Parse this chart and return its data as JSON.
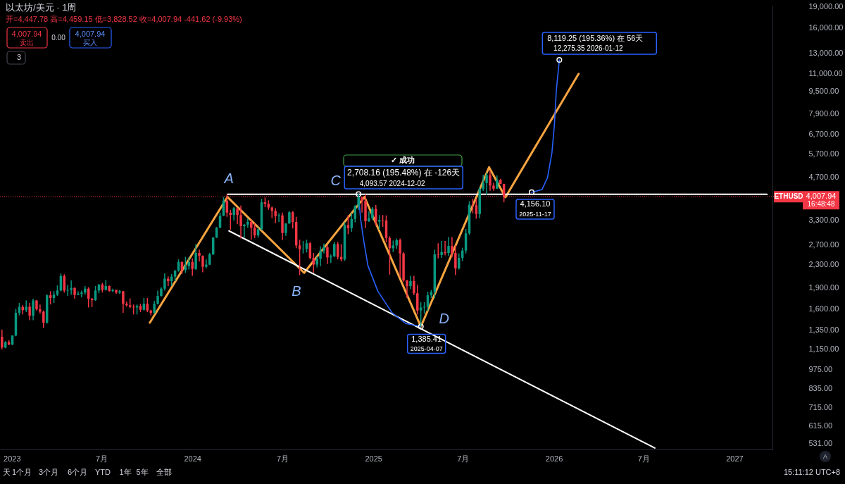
{
  "chart_data": {
    "type": "candlestick",
    "title": "以太坊/美元 · 1周",
    "subtitle": "开=4,447.78 高=4,459.15 低=3,828.52 收=4,007.94 -441.62 (-9.93%)",
    "x": [
      "2022-12-12",
      "2022-12-19",
      "2022-12-26",
      "2023-01-02",
      "2023-01-09",
      "2023-01-16",
      "2023-01-23",
      "2023-01-30",
      "2023-02-06",
      "2023-02-13",
      "2023-02-20",
      "2023-02-27",
      "2023-03-06",
      "2023-03-13",
      "2023-03-20",
      "2023-03-27",
      "2023-04-03",
      "2023-04-10",
      "2023-04-17",
      "2023-04-24",
      "2023-05-01",
      "2023-05-08",
      "2023-05-15",
      "2023-05-22",
      "2023-05-29",
      "2023-06-05",
      "2023-06-12",
      "2023-06-19",
      "2023-06-26",
      "2023-07-03",
      "2023-07-10",
      "2023-07-17",
      "2023-07-24",
      "2023-07-31",
      "2023-08-07",
      "2023-08-14",
      "2023-08-21",
      "2023-08-28",
      "2023-09-04",
      "2023-09-11",
      "2023-09-18",
      "2023-09-25",
      "2023-10-02",
      "2023-10-09",
      "2023-10-16",
      "2023-10-23",
      "2023-10-30",
      "2023-11-06",
      "2023-11-13",
      "2023-11-20",
      "2023-11-27",
      "2023-12-04",
      "2023-12-11",
      "2023-12-18",
      "2023-12-25",
      "2024-01-01",
      "2024-01-08",
      "2024-01-15",
      "2024-01-22",
      "2024-01-29",
      "2024-02-05",
      "2024-02-12",
      "2024-02-19",
      "2024-02-26",
      "2024-03-04",
      "2024-03-11",
      "2024-03-18",
      "2024-03-25",
      "2024-04-01",
      "2024-04-08",
      "2024-04-15",
      "2024-04-22",
      "2024-04-29",
      "2024-05-06",
      "2024-05-13",
      "2024-05-20",
      "2024-05-27",
      "2024-06-03",
      "2024-06-10",
      "2024-06-17",
      "2024-06-24",
      "2024-07-01",
      "2024-07-08",
      "2024-07-15",
      "2024-07-22",
      "2024-07-29",
      "2024-08-05",
      "2024-08-12",
      "2024-08-19",
      "2024-08-26",
      "2024-09-02",
      "2024-09-09",
      "2024-09-16",
      "2024-09-23",
      "2024-09-30",
      "2024-10-07",
      "2024-10-14",
      "2024-10-21",
      "2024-10-28",
      "2024-11-04",
      "2024-11-11",
      "2024-11-18",
      "2024-11-25",
      "2024-12-02",
      "2024-12-09",
      "2024-12-16",
      "2024-12-23",
      "2024-12-30",
      "2025-01-06",
      "2025-01-13",
      "2025-01-20",
      "2025-01-27",
      "2025-02-03",
      "2025-02-10",
      "2025-02-17",
      "2025-02-24",
      "2025-03-03",
      "2025-03-10",
      "2025-03-17",
      "2025-03-24",
      "2025-03-31",
      "2025-04-07",
      "2025-04-14",
      "2025-04-21",
      "2025-04-28",
      "2025-05-05",
      "2025-05-12",
      "2025-05-19",
      "2025-05-26",
      "2025-06-02",
      "2025-06-09",
      "2025-06-16",
      "2025-06-23",
      "2025-06-30",
      "2025-07-07",
      "2025-07-14",
      "2025-07-21",
      "2025-07-28",
      "2025-08-04",
      "2025-08-11",
      "2025-08-18",
      "2025-08-25",
      "2025-09-01",
      "2025-09-08",
      "2025-09-15",
      "2025-09-22"
    ],
    "ohlc": [
      [
        1275,
        1352,
        1150,
        1167
      ],
      [
        1167,
        1230,
        1160,
        1220
      ],
      [
        1220,
        1240,
        1190,
        1196
      ],
      [
        1196,
        1290,
        1190,
        1287
      ],
      [
        1287,
        1600,
        1280,
        1550
      ],
      [
        1550,
        1680,
        1520,
        1628
      ],
      [
        1628,
        1650,
        1530,
        1585
      ],
      [
        1585,
        1715,
        1560,
        1630
      ],
      [
        1630,
        1680,
        1460,
        1515
      ],
      [
        1515,
        1740,
        1460,
        1715
      ],
      [
        1715,
        1720,
        1580,
        1595
      ],
      [
        1595,
        1660,
        1540,
        1565
      ],
      [
        1565,
        1580,
        1370,
        1430
      ],
      [
        1430,
        1800,
        1420,
        1790
      ],
      [
        1790,
        1850,
        1660,
        1750
      ],
      [
        1750,
        1850,
        1680,
        1800
      ],
      [
        1800,
        1940,
        1780,
        1860
      ],
      [
        1860,
        2140,
        1850,
        2095
      ],
      [
        2095,
        2125,
        1830,
        1860
      ],
      [
        1860,
        1950,
        1780,
        1870
      ],
      [
        1870,
        2020,
        1800,
        1900
      ],
      [
        1900,
        1910,
        1740,
        1795
      ],
      [
        1795,
        1850,
        1790,
        1810
      ],
      [
        1810,
        1860,
        1760,
        1830
      ],
      [
        1830,
        1930,
        1800,
        1890
      ],
      [
        1890,
        1910,
        1620,
        1740
      ],
      [
        1740,
        1750,
        1625,
        1720
      ],
      [
        1720,
        1930,
        1710,
        1860
      ],
      [
        1860,
        1960,
        1820,
        1955
      ],
      [
        1955,
        1980,
        1830,
        1870
      ],
      [
        1870,
        2030,
        1860,
        1930
      ],
      [
        1930,
        1940,
        1840,
        1855
      ],
      [
        1855,
        1890,
        1835,
        1870
      ],
      [
        1870,
        1875,
        1810,
        1830
      ],
      [
        1830,
        1870,
        1810,
        1850
      ],
      [
        1850,
        1855,
        1550,
        1670
      ],
      [
        1670,
        1700,
        1630,
        1650
      ],
      [
        1650,
        1745,
        1610,
        1630
      ],
      [
        1630,
        1660,
        1530,
        1620
      ],
      [
        1620,
        1660,
        1530,
        1640
      ],
      [
        1640,
        1670,
        1560,
        1590
      ],
      [
        1590,
        1750,
        1580,
        1670
      ],
      [
        1670,
        1750,
        1560,
        1580
      ],
      [
        1580,
        1590,
        1520,
        1550
      ],
      [
        1550,
        1710,
        1540,
        1670
      ],
      [
        1670,
        1860,
        1660,
        1780
      ],
      [
        1780,
        1910,
        1770,
        1890
      ],
      [
        1890,
        2140,
        1860,
        2050
      ],
      [
        2050,
        2090,
        1930,
        2010
      ],
      [
        2010,
        2130,
        1930,
        2085
      ],
      [
        2085,
        2200,
        2010,
        2190
      ],
      [
        2190,
        2400,
        2170,
        2350
      ],
      [
        2350,
        2360,
        2130,
        2200
      ],
      [
        2200,
        2450,
        2150,
        2270
      ],
      [
        2270,
        2445,
        2210,
        2350
      ],
      [
        2350,
        2420,
        2100,
        2220
      ],
      [
        2220,
        2720,
        2200,
        2530
      ],
      [
        2530,
        2600,
        2360,
        2470
      ],
      [
        2470,
        2480,
        2160,
        2260
      ],
      [
        2260,
        2400,
        2230,
        2300
      ],
      [
        2300,
        2530,
        2290,
        2500
      ],
      [
        2500,
        2880,
        2490,
        2870
      ],
      [
        2870,
        3130,
        2860,
        3110
      ],
      [
        3110,
        3520,
        3100,
        3430
      ],
      [
        3430,
        3990,
        3420,
        3880
      ],
      [
        3880,
        4090,
        3400,
        3520
      ],
      [
        3520,
        3600,
        3060,
        3450
      ],
      [
        3450,
        3680,
        3300,
        3650
      ],
      [
        3650,
        3660,
        3200,
        3450
      ],
      [
        3450,
        3730,
        2850,
        3150
      ],
      [
        3150,
        3200,
        2870,
        3190
      ],
      [
        3190,
        3350,
        3110,
        3260
      ],
      [
        3260,
        3330,
        2820,
        3110
      ],
      [
        3110,
        3220,
        2860,
        2920
      ],
      [
        2920,
        3120,
        2870,
        3070
      ],
      [
        3070,
        3940,
        3050,
        3830
      ],
      [
        3830,
        3980,
        3680,
        3780
      ],
      [
        3780,
        3890,
        3600,
        3670
      ],
      [
        3670,
        3700,
        3360,
        3570
      ],
      [
        3570,
        3650,
        3230,
        3420
      ],
      [
        3420,
        3500,
        3260,
        3440
      ],
      [
        3440,
        3520,
        2810,
        2980
      ],
      [
        2980,
        3230,
        2910,
        3220
      ],
      [
        3220,
        3560,
        3210,
        3530
      ],
      [
        3530,
        3560,
        3090,
        3260
      ],
      [
        3260,
        3400,
        2630,
        2690
      ],
      [
        2690,
        2820,
        2110,
        2610
      ],
      [
        2610,
        2790,
        2520,
        2615
      ],
      [
        2615,
        2820,
        2540,
        2740
      ],
      [
        2740,
        2770,
        2400,
        2430
      ],
      [
        2430,
        2530,
        2150,
        2300
      ],
      [
        2300,
        2460,
        2250,
        2410
      ],
      [
        2410,
        2670,
        2270,
        2580
      ],
      [
        2580,
        2730,
        2520,
        2650
      ],
      [
        2650,
        2700,
        2310,
        2440
      ],
      [
        2440,
        2500,
        2330,
        2460
      ],
      [
        2460,
        2770,
        2450,
        2720
      ],
      [
        2720,
        2770,
        2400,
        2450
      ],
      [
        2450,
        2720,
        2360,
        2400
      ],
      [
        2400,
        3250,
        2370,
        3180
      ],
      [
        3180,
        3450,
        2950,
        3100
      ],
      [
        3100,
        3500,
        3010,
        3340
      ],
      [
        3340,
        3740,
        3250,
        3710
      ],
      [
        3710,
        4093.57,
        3600,
        3990
      ],
      [
        3990,
        4010,
        3520,
        3880
      ],
      [
        3880,
        4090,
        3100,
        3280
      ],
      [
        3280,
        3550,
        3260,
        3360
      ],
      [
        3360,
        3680,
        3310,
        3630
      ],
      [
        3630,
        3745,
        3160,
        3270
      ],
      [
        3270,
        3450,
        3060,
        3310
      ],
      [
        3310,
        3450,
        3130,
        3300
      ],
      [
        3300,
        3440,
        2760,
        2860
      ],
      [
        2860,
        2900,
        2120,
        2630
      ],
      [
        2630,
        2800,
        2550,
        2690
      ],
      [
        2690,
        2850,
        2620,
        2810
      ],
      [
        2810,
        2850,
        2080,
        2520
      ],
      [
        2520,
        2550,
        2000,
        2020
      ],
      [
        2020,
        2030,
        1750,
        1930
      ],
      [
        1930,
        2100,
        1880,
        2010
      ],
      [
        2010,
        2100,
        1790,
        1820
      ],
      [
        1820,
        1950,
        1530,
        1580
      ],
      [
        1580,
        1690,
        1385.41,
        1620
      ],
      [
        1620,
        1690,
        1540,
        1630
      ],
      [
        1630,
        1840,
        1570,
        1790
      ],
      [
        1790,
        1870,
        1750,
        1840
      ],
      [
        1840,
        2600,
        1750,
        2500
      ],
      [
        2500,
        2740,
        2420,
        2490
      ],
      [
        2490,
        2790,
        2430,
        2550
      ],
      [
        2550,
        2790,
        2480,
        2530
      ],
      [
        2530,
        2880,
        2470,
        2680
      ],
      [
        2680,
        2880,
        2440,
        2530
      ],
      [
        2530,
        2690,
        2110,
        2230
      ],
      [
        2230,
        2520,
        2210,
        2430
      ],
      [
        2430,
        2640,
        2370,
        2580
      ],
      [
        2580,
        3080,
        2520,
        2970
      ],
      [
        2970,
        3860,
        2930,
        3750
      ],
      [
        3750,
        3940,
        3500,
        3740
      ],
      [
        3740,
        3940,
        3350,
        3480
      ],
      [
        3480,
        4330,
        3360,
        4270
      ],
      [
        4270,
        4790,
        4200,
        4480
      ],
      [
        4480,
        4890,
        4060,
        4780
      ],
      [
        4780,
        4950,
        4210,
        4390
      ],
      [
        4390,
        4490,
        4210,
        4280
      ],
      [
        4280,
        4770,
        4270,
        4600
      ],
      [
        4600,
        4640,
        4440,
        4450
      ],
      [
        4447.78,
        4459.15,
        3828.52,
        4007.94
      ]
    ],
    "colors": [
      "#f23645",
      "#089981",
      "#f23645",
      "#089981",
      "#089981",
      "#089981",
      "#f23645",
      "#089981",
      "#f23645",
      "#089981",
      "#f23645",
      "#f23645",
      "#f23645",
      "#089981",
      "#f23645",
      "#089981",
      "#089981",
      "#089981",
      "#f23645",
      "#089981",
      "#089981",
      "#f23645",
      "#089981",
      "#089981",
      "#089981",
      "#f23645",
      "#f23645",
      "#089981",
      "#089981",
      "#f23645",
      "#089981",
      "#f23645",
      "#089981",
      "#f23645",
      "#089981",
      "#f23645",
      "#f23645",
      "#f23645",
      "#f23645",
      "#089981",
      "#f23645",
      "#089981",
      "#f23645",
      "#f23645",
      "#089981",
      "#089981",
      "#089981",
      "#089981",
      "#f23645",
      "#089981",
      "#089981",
      "#089981",
      "#f23645",
      "#089981",
      "#089981",
      "#f23645",
      "#089981",
      "#f23645",
      "#f23645",
      "#089981",
      "#089981",
      "#089981",
      "#089981",
      "#089981",
      "#089981",
      "#f23645",
      "#f23645",
      "#089981",
      "#f23645",
      "#f23645",
      "#089981",
      "#089981",
      "#f23645",
      "#f23645",
      "#089981",
      "#089981",
      "#f23645",
      "#f23645",
      "#f23645",
      "#f23645",
      "#089981",
      "#f23645",
      "#089981",
      "#089981",
      "#f23645",
      "#f23645",
      "#f23645",
      "#089981",
      "#089981",
      "#f23645",
      "#f23645",
      "#089981",
      "#089981",
      "#089981",
      "#f23645",
      "#089981",
      "#089981",
      "#f23645",
      "#f23645",
      "#089981",
      "#f23645",
      "#089981",
      "#089981",
      "#089981",
      "#f23645",
      "#f23645",
      "#089981",
      "#089981",
      "#f23645",
      "#089981",
      "#f23645",
      "#f23645",
      "#f23645",
      "#089981",
      "#089981",
      "#f23645",
      "#f23645",
      "#f23645",
      "#089981",
      "#f23645",
      "#f23645",
      "#089981",
      "#089981",
      "#089981",
      "#089981",
      "#089981",
      "#f23645",
      "#089981",
      "#f23645",
      "#089981",
      "#f23645",
      "#f23645",
      "#089981",
      "#089981",
      "#089981",
      "#089981",
      "#f23645",
      "#f23645",
      "#089981",
      "#089981",
      "#089981",
      "#f23645",
      "#f23645",
      "#089981",
      "#f23645",
      "#f23645"
    ],
    "series": [
      {
        "type": "line",
        "color": "#f7a440",
        "x": [
          "2023-10-07",
          "2024-03-12",
          "2024-08-14",
          "2024-12-14",
          "2025-04-07",
          "2025-08-23",
          "2025-09-25",
          "2026-02-20"
        ],
        "values": [
          1430,
          4000,
          2150,
          4000,
          1385.41,
          5100,
          3990,
          10950
        ]
      },
      {
        "type": "line",
        "color": "#ffffff",
        "x": [
          "2024-03-12",
          "2027-03-08"
        ],
        "values": [
          4090,
          4090
        ]
      },
      {
        "type": "line",
        "color": "#ffffff",
        "x": [
          "2024-03-15",
          "2026-07-24"
        ],
        "values": [
          3030,
          513
        ]
      },
      {
        "type": "line",
        "color": "#2962ff",
        "x": [
          "2024-12-02",
          "2024-12-06",
          "2024-12-13",
          "2024-12-21",
          "2025-01-10",
          "2025-02-08",
          "2025-03-08",
          "2025-04-07"
        ],
        "values": [
          4093.57,
          3360,
          2760,
          2280,
          1850,
          1550,
          1420,
          1385.41
        ]
      },
      {
        "type": "line",
        "color": "#2962ff",
        "x": [
          "2025-11-17",
          "2025-12-08",
          "2025-12-19",
          "2025-12-28",
          "2026-01-02",
          "2026-01-06",
          "2026-01-12"
        ],
        "values": [
          4156.1,
          4250,
          4680,
          5730,
          7200,
          9600,
          12275.35
        ]
      },
      {
        "type": "scatter",
        "color": "#ffffff",
        "marker": "circle",
        "x": [
          "2024-12-02",
          "2025-04-07",
          "2025-11-17",
          "2026-01-12"
        ],
        "values": [
          4093.57,
          1385.41,
          4156.1,
          12275.35
        ]
      }
    ],
    "ref_lines": [
      {
        "axis": "y",
        "value": 4007.94,
        "label": "4,007.94",
        "color": "#f23645",
        "line_style": "dotted"
      }
    ],
    "annotations": [
      {
        "text": "A",
        "x": "2024-03-12",
        "y": 4000
      },
      {
        "text": "B",
        "x": "2024-08-14",
        "y": 2150
      },
      {
        "text": "C",
        "x": "2024-12-14",
        "y": 4000
      },
      {
        "text": "D",
        "x": "2025-04-07",
        "y": 1385.41
      },
      "✓ 成功",
      {
        "text": "2,708.16 (195.48%) 在 -126天",
        "x": "2024-12-02",
        "y": 4093.57
      },
      {
        "text": "4,093.57 2024-12-02",
        "x": "2024-12-02",
        "y": 4093.57
      },
      {
        "text": "1,385.41",
        "x": "2025-04-07",
        "y": 1385.41
      },
      {
        "text": "2025-04-07",
        "x": "2025-04-07",
        "y": 1385.41
      },
      {
        "text": "4,156.10",
        "x": "2025-11-17",
        "y": 4156.1
      },
      {
        "text": "2025-11-17",
        "x": "2025-11-17",
        "y": 4156.1
      },
      {
        "text": "8,119.25 (195.36%) 在 56天",
        "x": "2026-01-12",
        "y": 12275.35
      },
      {
        "text": "12,275.35 2026-01-12",
        "x": "2026-01-12",
        "y": 12275.35
      },
      "4,007.94",
      "卖出",
      "0.00",
      "4,007.94",
      "买入",
      "3",
      "ETHUSD",
      "16:48:48",
      "天",
      "1个月",
      "3个月",
      "6个月",
      "YTD",
      "1年",
      "5年",
      "全部",
      "15:11:12 UTC+8",
      "A"
    ],
    "xlim": [
      "2022-12-08",
      "2027-03-19"
    ],
    "xticks": [
      {
        "value": "2023-01-01",
        "label": "2023"
      },
      {
        "value": "2023-07-01",
        "label": "7月"
      },
      {
        "value": "2024-01-01",
        "label": "2024"
      },
      {
        "value": "2024-07-01",
        "label": "7月"
      },
      {
        "value": "2025-01-01",
        "label": "2025"
      },
      {
        "value": "2025-07-01",
        "label": "7月"
      },
      {
        "value": "2026-01-01",
        "label": "2026"
      },
      {
        "value": "2026-07-01",
        "label": "7月"
      },
      {
        "value": "2027-01-01",
        "label": "2027"
      }
    ],
    "ylim": [
      507,
      19130
    ],
    "log": "y",
    "yticks": [
      {
        "value": 531,
        "label": "531.00"
      },
      {
        "value": 615,
        "label": "615.00"
      },
      {
        "value": 715,
        "label": "715.00"
      },
      {
        "value": 835,
        "label": "835.00"
      },
      {
        "value": 975,
        "label": "975.00"
      },
      {
        "value": 1150,
        "label": "1,150.00"
      },
      {
        "value": 1350,
        "label": "1,350.00"
      },
      {
        "value": 1600,
        "label": "1,600.00"
      },
      {
        "value": 1900,
        "label": "1,900.00"
      },
      {
        "value": 2300,
        "label": "2,300.00"
      },
      {
        "value": 2700,
        "label": "2,700.00"
      },
      {
        "value": 3300,
        "label": "3,300.00"
      },
      {
        "value": 4700,
        "label": "4,700.00"
      },
      {
        "value": 5700,
        "label": "5,700.00"
      },
      {
        "value": 6700,
        "label": "6,700.00"
      },
      {
        "value": 7900,
        "label": "7,900.00"
      },
      {
        "value": 9500,
        "label": "9,500.00"
      },
      {
        "value": 11000,
        "label": "11,000.00"
      },
      {
        "value": 13000,
        "label": "13,000.00"
      },
      {
        "value": 16000,
        "label": "16,000.00"
      },
      {
        "value": 19000,
        "label": "19,000.00"
      }
    ]
  }
}
